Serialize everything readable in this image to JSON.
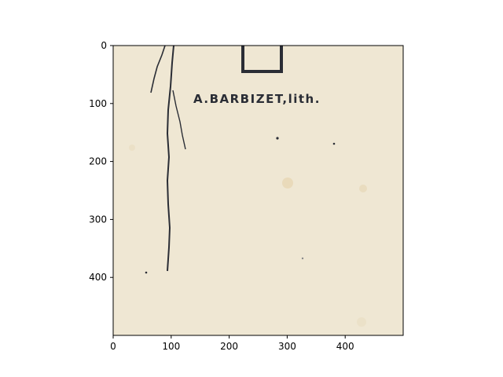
{
  "chart_data": {
    "type": "image",
    "title": "",
    "xlabel": "",
    "ylabel": "",
    "xlim": [
      0,
      500
    ],
    "ylim": [
      500,
      0
    ],
    "xticks": [
      0,
      100,
      200,
      300,
      400
    ],
    "yticks": [
      0,
      100,
      200,
      300,
      400
    ],
    "inscription": "A.BARBIZET,lith.",
    "paper_color": "#efe7d3",
    "ink_color": "#2a2d35",
    "grid": false,
    "legend": "none"
  }
}
